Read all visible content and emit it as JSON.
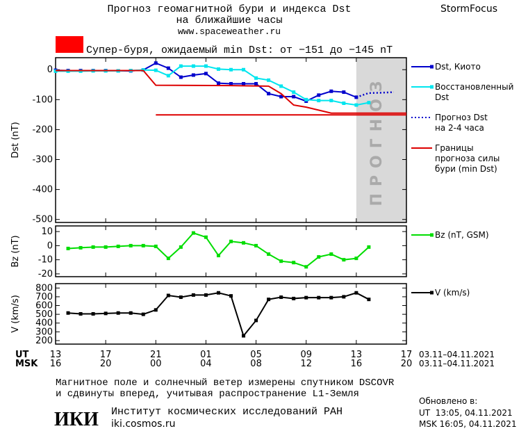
{
  "header": {
    "title": "Прогноз геомагнитной бури и индекса Dst",
    "subtitle": "на ближайшие часы",
    "url": "www.spaceweather.ru",
    "brand": "StormFocus",
    "storm_level": "Супер-буря, ожидаемый min Dst: от −151 до −145 nT",
    "storm_color": "#ff0000"
  },
  "chart_data": [
    {
      "type": "line",
      "ylabel": "Dst (nT)",
      "xlim": [
        13,
        41
      ],
      "ylim": [
        -510,
        40
      ],
      "yticks": [
        0,
        -100,
        -200,
        -300,
        -400,
        -500
      ],
      "forecast_region": [
        37,
        41
      ],
      "forecast_label": "ПРОГНОЗ",
      "series": [
        {
          "name": "Dst, Киото",
          "color": "#0000cc",
          "marker": "square",
          "x": [
            13,
            14,
            15,
            16,
            17,
            18,
            19,
            20,
            21,
            22,
            23,
            24,
            25,
            26,
            27,
            28,
            29,
            30,
            31,
            32,
            33,
            34,
            35,
            36,
            37
          ],
          "values": [
            -2,
            -3,
            -3,
            -3,
            -3,
            -4,
            -4,
            -1,
            22,
            5,
            -25,
            -18,
            -13,
            -45,
            -47,
            -47,
            -47,
            -80,
            -90,
            -90,
            -105,
            -85,
            -72,
            -75,
            -92
          ]
        },
        {
          "name": "Восстановленный\nDst",
          "color": "#00e5ee",
          "marker": "square",
          "x": [
            13,
            14,
            15,
            16,
            17,
            18,
            19,
            20,
            21,
            22,
            23,
            24,
            25,
            26,
            27,
            28,
            29,
            30,
            31,
            32,
            33,
            34,
            35,
            36,
            37,
            38
          ],
          "values": [
            -5,
            -5,
            -5,
            -4,
            -4,
            -4,
            -3,
            -1,
            -2,
            -20,
            12,
            12,
            12,
            2,
            0,
            0,
            -28,
            -35,
            -55,
            -75,
            -100,
            -103,
            -103,
            -112,
            -118,
            -110
          ]
        },
        {
          "name": "Прогноз Dst\nна 2-4 часа",
          "color": "#0000cc",
          "dash": "dotted",
          "x": [
            37,
            38,
            39,
            40
          ],
          "values": [
            -92,
            -78,
            -77,
            -75
          ]
        },
        {
          "name": "Границы\nпрогноза силы\nбури (min Dst)",
          "color": "#dd0000",
          "x": [
            13,
            20,
            21,
            27,
            30,
            31,
            32,
            33,
            35,
            41
          ],
          "values": [
            -3,
            -3,
            -52,
            -53,
            -55,
            -80,
            -118,
            -125,
            -145,
            -145
          ]
        },
        {
          "color": "#dd0000",
          "x": [
            21,
            41
          ],
          "values": [
            -151,
            -151
          ]
        }
      ]
    },
    {
      "type": "line",
      "ylabel": "Bz (nT)",
      "xlim": [
        13,
        41
      ],
      "ylim": [
        -22,
        14
      ],
      "yticks": [
        10,
        0,
        -10,
        -20
      ],
      "series": [
        {
          "name": "Bz (nT, GSM)",
          "color": "#00dd00",
          "marker": "square",
          "x": [
            14,
            15,
            16,
            17,
            18,
            19,
            20,
            21,
            22,
            23,
            24,
            25,
            26,
            27,
            28,
            29,
            30,
            31,
            32,
            33,
            34,
            35,
            36,
            37,
            38
          ],
          "values": [
            -2,
            -1.5,
            -1,
            -1,
            -0.5,
            0,
            0,
            -0.5,
            -9,
            -1,
            9,
            6,
            -7,
            3,
            2,
            0,
            -6,
            -11,
            -12,
            -15,
            -8,
            -6,
            -10,
            -9,
            -1
          ]
        }
      ]
    },
    {
      "type": "line",
      "ylabel": "V (km/s)",
      "xlim": [
        13,
        41
      ],
      "ylim": [
        160,
        850
      ],
      "yticks": [
        200,
        300,
        400,
        500,
        600,
        700,
        800
      ],
      "xticks": [
        13,
        17,
        21,
        {
          "value": 25,
          "label": "01"
        },
        {
          "value": 29,
          "label": "05"
        },
        {
          "value": 33,
          "label": "09"
        },
        {
          "value": 37,
          "label": "13"
        },
        {
          "value": 41,
          "label": "17"
        }
      ],
      "msk_ticks": [
        "16",
        "20",
        "00",
        "04",
        "08",
        "12",
        "16",
        "20"
      ],
      "ut_label": "UT",
      "msk_label": "MSK",
      "ut_range": "03.11–04.11.2021",
      "msk_range": "03.11–04.11.2021",
      "series": [
        {
          "name": "V (km/s)",
          "color": "#000000",
          "marker": "square",
          "x": [
            14,
            15,
            16,
            17,
            18,
            19,
            20,
            21,
            22,
            23,
            24,
            25,
            26,
            27,
            28,
            29,
            30,
            31,
            32,
            33,
            34,
            35,
            36,
            37,
            38
          ],
          "values": [
            515,
            505,
            505,
            510,
            515,
            515,
            500,
            550,
            715,
            695,
            720,
            720,
            745,
            710,
            255,
            430,
            670,
            695,
            680,
            690,
            690,
            690,
            700,
            745,
            670
          ]
        }
      ]
    }
  ],
  "footer": {
    "note_line1": "Магнитное поле и солнечный ветер измерены спутником DSCOVR",
    "note_line2": "и сдвинуты вперед, учитывая распространение L1-Земля",
    "logo": "ИКИ",
    "institute": "Институт космических исследований РАН",
    "site": "iki.cosmos.ru",
    "updated": "Обновлено в:",
    "updated_ut": "UT  13:05, 04.11.2021",
    "updated_msk": "MSK 16:05, 04.11.2021"
  }
}
